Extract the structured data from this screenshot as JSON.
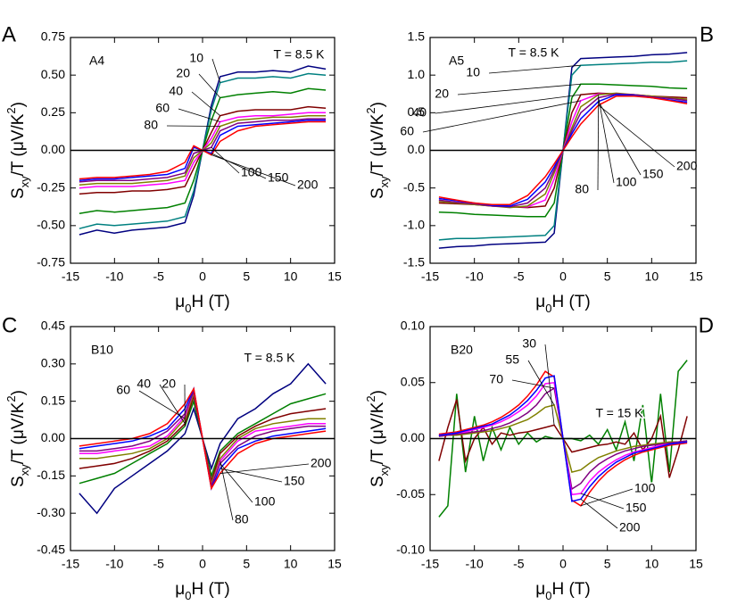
{
  "chart_data": [
    {
      "type": "line",
      "panel": "A",
      "annotation": "A4",
      "xlabel": [
        "μ",
        "0",
        "H (T)"
      ],
      "ylabel": [
        "S",
        "xy",
        "/T (μV/K",
        "2",
        ")"
      ],
      "xlim": [
        -15,
        15
      ],
      "xticks": [
        -15,
        -10,
        -5,
        0,
        5,
        10,
        15
      ],
      "ylim": [
        -0.75,
        0.75
      ],
      "yticks": [
        -0.75,
        {
          "value": -0.5,
          "label": "-0.50"
        },
        -0.25,
        {
          "value": 0,
          "label": "0.00"
        },
        0.25,
        {
          "value": 0.5,
          "label": "0.50"
        },
        0.75
      ],
      "x": [
        -14,
        -12,
        -10,
        -8,
        -6,
        -4,
        -2,
        -1,
        0,
        1,
        2,
        4,
        6,
        8,
        10,
        12,
        14
      ],
      "series": [
        {
          "name": "T = 8.5 K",
          "color": "#000080",
          "values": [
            -0.56,
            -0.53,
            -0.55,
            -0.53,
            -0.52,
            -0.51,
            -0.48,
            -0.3,
            0,
            0.3,
            0.49,
            0.52,
            0.52,
            0.53,
            0.52,
            0.56,
            0.54
          ]
        },
        {
          "name": "10",
          "color": "#008080",
          "values": [
            -0.52,
            -0.49,
            -0.5,
            -0.49,
            -0.48,
            -0.47,
            -0.44,
            -0.27,
            0,
            0.27,
            0.45,
            0.48,
            0.48,
            0.49,
            0.48,
            0.51,
            0.5
          ]
        },
        {
          "name": "20",
          "color": "#008000",
          "values": [
            -0.42,
            -0.4,
            -0.41,
            -0.4,
            -0.39,
            -0.38,
            -0.35,
            -0.2,
            0,
            0.2,
            0.35,
            0.37,
            0.38,
            0.39,
            0.38,
            0.41,
            0.4
          ]
        },
        {
          "name": "40",
          "color": "#800000",
          "values": [
            -0.29,
            -0.28,
            -0.28,
            -0.27,
            -0.27,
            -0.26,
            -0.24,
            -0.12,
            0,
            0.12,
            0.23,
            0.26,
            0.27,
            0.27,
            0.27,
            0.29,
            0.28
          ]
        },
        {
          "name": "60",
          "color": "#ff00ff",
          "values": [
            -0.25,
            -0.24,
            -0.24,
            -0.24,
            -0.23,
            -0.22,
            -0.2,
            -0.08,
            0,
            0.08,
            0.19,
            0.22,
            0.23,
            0.23,
            0.24,
            0.25,
            0.25
          ]
        },
        {
          "name": "80",
          "color": "#808000",
          "values": [
            -0.23,
            -0.22,
            -0.22,
            -0.22,
            -0.21,
            -0.2,
            -0.17,
            -0.05,
            0,
            0.05,
            0.16,
            0.2,
            0.21,
            0.22,
            0.22,
            0.23,
            0.23
          ]
        },
        {
          "name": "100",
          "color": "#800080",
          "values": [
            -0.21,
            -0.2,
            -0.2,
            -0.2,
            -0.19,
            -0.18,
            -0.15,
            -0.02,
            0,
            0.02,
            0.13,
            0.18,
            0.19,
            0.2,
            0.2,
            0.21,
            0.21
          ]
        },
        {
          "name": "150",
          "color": "#0000ff",
          "values": [
            -0.2,
            -0.19,
            -0.19,
            -0.18,
            -0.17,
            -0.16,
            -0.12,
            0.02,
            0,
            -0.02,
            0.1,
            0.16,
            0.17,
            0.18,
            0.19,
            0.2,
            0.2
          ]
        },
        {
          "name": "200",
          "color": "#ff0000",
          "values": [
            -0.19,
            -0.18,
            -0.18,
            -0.17,
            -0.16,
            -0.14,
            -0.08,
            0.03,
            0,
            -0.03,
            0.06,
            0.13,
            0.16,
            0.17,
            0.18,
            0.19,
            0.19
          ]
        }
      ]
    },
    {
      "type": "line",
      "panel": "B",
      "annotation": "A5",
      "xlabel": [
        "μ",
        "0",
        "H (T)"
      ],
      "ylabel": [
        "S",
        "xy",
        "/T (μV/K",
        "2",
        ")"
      ],
      "xlim": [
        -15,
        15
      ],
      "xticks": [
        -15,
        -10,
        -5,
        0,
        5,
        10,
        15
      ],
      "ylim": [
        -1.5,
        1.5
      ],
      "yticks": [
        -1.5,
        {
          "value": -1,
          "label": "-1.0"
        },
        -0.5,
        {
          "value": 0,
          "label": "0.0"
        },
        0.5,
        {
          "value": 1,
          "label": "1.0"
        },
        1.5
      ],
      "x": [
        -14,
        -12,
        -10,
        -8,
        -6,
        -4,
        -2,
        -1,
        0,
        1,
        2,
        4,
        6,
        8,
        10,
        12,
        14
      ],
      "series": [
        {
          "name": "T = 8.5 K",
          "color": "#000080",
          "values": [
            -1.3,
            -1.28,
            -1.27,
            -1.25,
            -1.24,
            -1.23,
            -1.22,
            -1.1,
            0,
            1.1,
            1.22,
            1.23,
            1.24,
            1.25,
            1.27,
            1.28,
            1.3
          ]
        },
        {
          "name": "10",
          "color": "#008080",
          "values": [
            -1.19,
            -1.17,
            -1.17,
            -1.16,
            -1.15,
            -1.14,
            -1.13,
            -1.0,
            0,
            1.0,
            1.13,
            1.14,
            1.15,
            1.16,
            1.17,
            1.17,
            1.19
          ]
        },
        {
          "name": "20",
          "color": "#008000",
          "values": [
            -0.82,
            -0.83,
            -0.85,
            -0.86,
            -0.87,
            -0.88,
            -0.88,
            -0.7,
            0,
            0.7,
            0.88,
            0.88,
            0.87,
            0.86,
            0.85,
            0.83,
            0.82
          ]
        },
        {
          "name": "40",
          "color": "#800000",
          "values": [
            -0.7,
            -0.71,
            -0.72,
            -0.74,
            -0.75,
            -0.76,
            -0.74,
            -0.5,
            0,
            0.5,
            0.74,
            0.76,
            0.75,
            0.74,
            0.72,
            0.71,
            0.7
          ]
        },
        {
          "name": "60",
          "color": "#ff00ff",
          "values": [
            -0.68,
            -0.69,
            -0.71,
            -0.73,
            -0.75,
            -0.75,
            -0.66,
            -0.38,
            0,
            0.38,
            0.66,
            0.75,
            0.75,
            0.73,
            0.71,
            0.69,
            0.68
          ]
        },
        {
          "name": "80",
          "color": "#808000",
          "values": [
            -0.68,
            -0.7,
            -0.72,
            -0.74,
            -0.76,
            -0.74,
            -0.58,
            -0.3,
            0,
            0.3,
            0.58,
            0.74,
            0.76,
            0.74,
            0.72,
            0.7,
            0.68
          ]
        },
        {
          "name": "100",
          "color": "#800080",
          "values": [
            -0.66,
            -0.69,
            -0.71,
            -0.74,
            -0.75,
            -0.7,
            -0.5,
            -0.26,
            0,
            0.26,
            0.5,
            0.7,
            0.75,
            0.74,
            0.71,
            0.69,
            0.66
          ]
        },
        {
          "name": "150",
          "color": "#0000ff",
          "values": [
            -0.64,
            -0.67,
            -0.7,
            -0.73,
            -0.74,
            -0.65,
            -0.42,
            -0.22,
            0,
            0.22,
            0.42,
            0.65,
            0.74,
            0.73,
            0.7,
            0.67,
            0.64
          ]
        },
        {
          "name": "200",
          "color": "#ff0000",
          "values": [
            -0.62,
            -0.66,
            -0.7,
            -0.72,
            -0.72,
            -0.6,
            -0.35,
            -0.18,
            0,
            0.18,
            0.35,
            0.6,
            0.72,
            0.72,
            0.7,
            0.66,
            0.62
          ]
        }
      ]
    },
    {
      "type": "line",
      "panel": "C",
      "annotation": "B10",
      "xlabel": [
        "μ",
        "0",
        "H (T)"
      ],
      "ylabel": [
        "S",
        "xy",
        "/T (μV/K",
        "2",
        ")"
      ],
      "xlim": [
        -15,
        15
      ],
      "xticks": [
        -15,
        -10,
        -5,
        0,
        5,
        10,
        15
      ],
      "ylim": [
        -0.45,
        0.45
      ],
      "yticks": [
        -0.45,
        {
          "value": -0.3,
          "label": "-0.30"
        },
        -0.15,
        {
          "value": 0,
          "label": "0.00"
        },
        0.15,
        {
          "value": 0.3,
          "label": "0.30"
        },
        0.45
      ],
      "x": [
        -14,
        -12,
        -10,
        -8,
        -6,
        -4,
        -2,
        -1,
        0,
        1,
        2,
        4,
        6,
        8,
        10,
        12,
        14
      ],
      "series": [
        {
          "name": "T = 8.5 K",
          "color": "#000080",
          "values": [
            -0.22,
            -0.3,
            -0.2,
            -0.15,
            -0.1,
            -0.05,
            0.02,
            0.12,
            0,
            -0.12,
            -0.02,
            0.08,
            0.12,
            0.18,
            0.22,
            0.3,
            0.22
          ]
        },
        {
          "name": "20",
          "color": "#008000",
          "values": [
            -0.18,
            -0.16,
            -0.14,
            -0.1,
            -0.06,
            -0.02,
            0.05,
            0.15,
            0,
            -0.15,
            -0.05,
            0.02,
            0.06,
            0.1,
            0.14,
            0.16,
            0.18
          ]
        },
        {
          "name": "40",
          "color": "#800000",
          "values": [
            -0.12,
            -0.11,
            -0.1,
            -0.08,
            -0.05,
            -0.01,
            0.06,
            0.17,
            0,
            -0.17,
            -0.06,
            0.01,
            0.05,
            0.08,
            0.1,
            0.11,
            0.12
          ]
        },
        {
          "name": "60",
          "color": "#808000",
          "values": [
            -0.08,
            -0.08,
            -0.07,
            -0.06,
            -0.04,
            0,
            0.08,
            0.18,
            0,
            -0.18,
            -0.08,
            0,
            0.04,
            0.06,
            0.07,
            0.08,
            0.08
          ]
        },
        {
          "name": "80",
          "color": "#ff00ff",
          "values": [
            -0.06,
            -0.06,
            -0.05,
            -0.04,
            -0.03,
            0.01,
            0.09,
            0.19,
            0,
            -0.19,
            -0.09,
            -0.01,
            0.03,
            0.04,
            0.05,
            0.06,
            0.06
          ]
        },
        {
          "name": "100",
          "color": "#800080",
          "values": [
            -0.05,
            -0.05,
            -0.04,
            -0.03,
            -0.01,
            0.03,
            0.1,
            0.19,
            0,
            -0.19,
            -0.1,
            -0.03,
            0.01,
            0.03,
            0.04,
            0.05,
            0.05
          ]
        },
        {
          "name": "150",
          "color": "#0000ff",
          "values": [
            -0.04,
            -0.03,
            -0.02,
            -0.01,
            0.01,
            0.04,
            0.12,
            0.2,
            0,
            -0.2,
            -0.12,
            -0.04,
            -0.01,
            0.01,
            0.02,
            0.03,
            0.04
          ]
        },
        {
          "name": "200",
          "color": "#ff0000",
          "values": [
            -0.03,
            -0.02,
            -0.01,
            0,
            0.02,
            0.06,
            0.14,
            0.2,
            0,
            -0.2,
            -0.14,
            -0.06,
            -0.02,
            0,
            0.01,
            0.02,
            0.03
          ]
        }
      ]
    },
    {
      "type": "line",
      "panel": "D",
      "annotation": "B20",
      "xlabel": [
        "μ",
        "0",
        "H (T)"
      ],
      "ylabel": [
        "S",
        "xy",
        "/T (μV/K",
        "2",
        ")"
      ],
      "xlim": [
        -15,
        15
      ],
      "xticks": [
        -15,
        -10,
        -5,
        0,
        5,
        10,
        15
      ],
      "ylim": [
        -0.1,
        0.1
      ],
      "yticks": [
        {
          "value": -0.1,
          "label": "-0.10"
        },
        -0.05,
        {
          "value": 0,
          "label": "0.00"
        },
        0.05,
        {
          "value": 0.1,
          "label": "0.10"
        }
      ],
      "x": [
        -14,
        -13,
        -12,
        -11,
        -10,
        -9,
        -8,
        -7,
        -6,
        -5,
        -4,
        -3,
        -2,
        -1,
        0,
        1,
        2,
        3,
        4,
        5,
        6,
        7,
        8,
        9,
        10,
        11,
        12,
        13,
        14
      ],
      "series": [
        {
          "name": "T = 15 K",
          "color": "#008000",
          "values": [
            -0.07,
            -0.06,
            0.04,
            -0.03,
            0.02,
            -0.02,
            0.01,
            -0.01,
            0.01,
            -0.005,
            0.005,
            -0.003,
            0.002,
            0,
            0,
            0,
            -0.002,
            0.003,
            -0.005,
            0.008,
            -0.01,
            0.015,
            -0.02,
            0.03,
            -0.04,
            0.04,
            -0.03,
            0.06,
            0.07
          ]
        },
        {
          "name": "30",
          "color": "#800000",
          "values": [
            -0.02,
            0.01,
            0.035,
            -0.02,
            0,
            0.01,
            -0.005,
            0.005,
            0.003,
            0.005,
            0.006,
            0.008,
            0.01,
            0.012,
            0,
            -0.012,
            -0.01,
            -0.008,
            -0.006,
            -0.005,
            -0.003,
            -0.005,
            0.005,
            -0.01,
            0,
            0.02,
            -0.035,
            -0.01,
            0.02
          ]
        },
        {
          "name": "55",
          "color": "#808000",
          "values": [
            0.002,
            0.003,
            0.003,
            0.004,
            0.005,
            0.006,
            0.007,
            0.009,
            0.011,
            0.014,
            0.017,
            0.022,
            0.028,
            0.03,
            0,
            -0.03,
            -0.028,
            -0.022,
            -0.017,
            -0.014,
            -0.011,
            -0.009,
            -0.007,
            -0.006,
            -0.005,
            -0.004,
            -0.003,
            -0.003,
            -0.002
          ]
        },
        {
          "name": "70",
          "color": "#800080",
          "values": [
            0.002,
            0.003,
            0.004,
            0.005,
            0.006,
            0.007,
            0.009,
            0.011,
            0.014,
            0.018,
            0.023,
            0.03,
            0.04,
            0.045,
            0,
            -0.045,
            -0.04,
            -0.03,
            -0.023,
            -0.018,
            -0.014,
            -0.011,
            -0.009,
            -0.007,
            -0.006,
            -0.005,
            -0.004,
            -0.003,
            -0.002
          ]
        },
        {
          "name": "100",
          "color": "#ff0000",
          "values": [
            0.004,
            0.005,
            0.006,
            0.008,
            0.01,
            0.012,
            0.015,
            0.019,
            0.024,
            0.03,
            0.038,
            0.048,
            0.06,
            0.055,
            0,
            -0.055,
            -0.06,
            -0.048,
            -0.038,
            -0.03,
            -0.024,
            -0.019,
            -0.015,
            -0.012,
            -0.01,
            -0.008,
            -0.006,
            -0.005,
            -0.004
          ]
        },
        {
          "name": "150",
          "color": "#ff00ff",
          "values": [
            0.003,
            0.004,
            0.005,
            0.006,
            0.008,
            0.01,
            0.012,
            0.015,
            0.019,
            0.024,
            0.03,
            0.038,
            0.049,
            0.05,
            0,
            -0.05,
            -0.049,
            -0.038,
            -0.03,
            -0.024,
            -0.019,
            -0.015,
            -0.012,
            -0.01,
            -0.008,
            -0.006,
            -0.005,
            -0.004,
            -0.003
          ]
        },
        {
          "name": "200",
          "color": "#0000ff",
          "values": [
            0.003,
            0.004,
            0.005,
            0.007,
            0.009,
            0.011,
            0.013,
            0.017,
            0.021,
            0.027,
            0.034,
            0.043,
            0.054,
            0.056,
            0,
            -0.056,
            -0.054,
            -0.043,
            -0.034,
            -0.027,
            -0.021,
            -0.017,
            -0.013,
            -0.011,
            -0.009,
            -0.007,
            -0.005,
            -0.004,
            -0.003
          ]
        }
      ]
    }
  ]
}
